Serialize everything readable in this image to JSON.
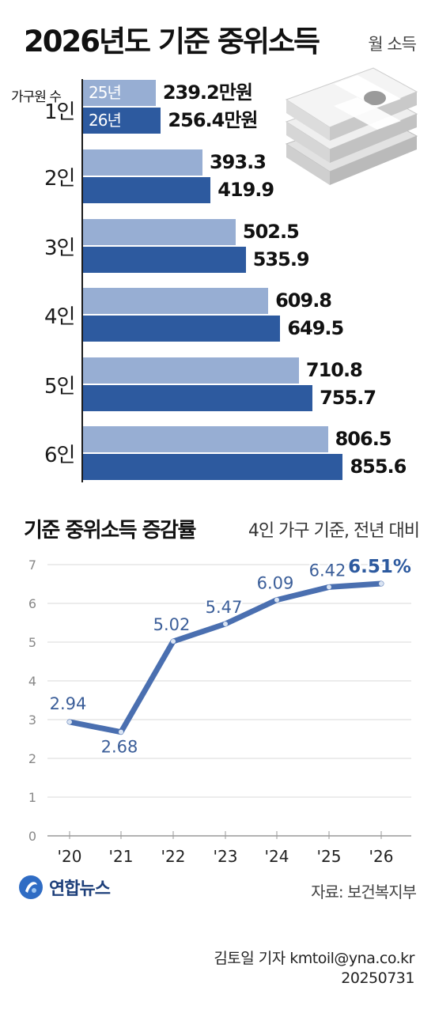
{
  "title": "2026년도 기준 중위소득",
  "unit_label": "월 소득",
  "household_label": "가구원 수",
  "bar_chart": {
    "categories": [
      "1인",
      "2인",
      "3인",
      "4인",
      "5인",
      "6인"
    ],
    "series": [
      {
        "name": "25년",
        "values": [
          239.2,
          393.3,
          502.5,
          609.8,
          710.8,
          806.5
        ]
      },
      {
        "name": "26년",
        "values": [
          256.4,
          419.9,
          535.9,
          649.5,
          755.7,
          855.6
        ]
      }
    ],
    "value_labels": {
      "prev": [
        "239.2만원",
        "393.3",
        "502.5",
        "609.8",
        "710.8",
        "806.5"
      ],
      "cur": [
        "256.4만원",
        "419.9",
        "535.9",
        "649.5",
        "755.7",
        "855.6"
      ]
    },
    "colors": {
      "prev": "#97aed3",
      "cur": "#2d5a9f"
    }
  },
  "chart_data": {
    "type": "line",
    "title": "기준 중위소득 증감률",
    "subtitle": "4인 가구 기준, 전년 대비",
    "x": [
      "'20",
      "'21",
      "'22",
      "'23",
      "'24",
      "'25",
      "'26"
    ],
    "values": [
      2.94,
      2.68,
      5.02,
      5.47,
      6.09,
      6.42,
      6.51
    ],
    "value_labels": [
      "2.94",
      "2.68",
      "5.02",
      "5.47",
      "6.09",
      "6.42",
      "6.51%"
    ],
    "yticks": [
      "0",
      "1",
      "2",
      "3",
      "4",
      "5",
      "6",
      "7"
    ],
    "ylim": [
      0,
      7
    ],
    "grid": true,
    "line_color": "#4a6fb0"
  },
  "source": "자료: 보건복지부",
  "logo_text": "연합뉴스",
  "credit": {
    "reporter": "김토일 기자 kmtoil@yna.co.kr",
    "date": "20250731"
  }
}
